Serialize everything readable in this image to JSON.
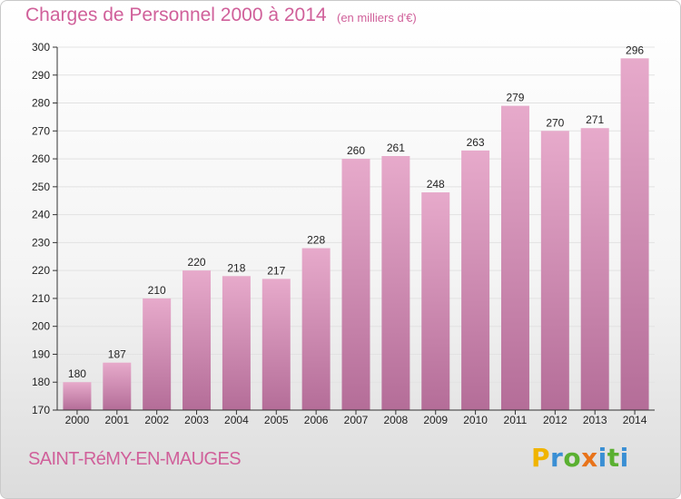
{
  "header": {
    "title": "Charges de Personnel 2000 à 2014",
    "unit": "(en milliers d'€)"
  },
  "footer": {
    "commune": "SAINT-RéMY-EN-MAUGES",
    "logo": "Proxiti"
  },
  "colors": {
    "accent": "#d0609a",
    "bar_top": "#e7aacb",
    "bar_bottom": "#b46d98",
    "grid": "#e2e2e2",
    "axis": "#333333"
  },
  "chart_data": {
    "type": "bar",
    "title": "Charges de Personnel 2000 à 2014",
    "subtitle": "(en milliers d'€)",
    "xlabel": "",
    "ylabel": "",
    "categories": [
      "2000",
      "2001",
      "2002",
      "2003",
      "2004",
      "2005",
      "2006",
      "2007",
      "2008",
      "2009",
      "2010",
      "2011",
      "2012",
      "2013",
      "2014"
    ],
    "values": [
      180,
      187,
      210,
      220,
      218,
      217,
      228,
      260,
      261,
      248,
      263,
      279,
      270,
      271,
      296
    ],
    "ylim": [
      170,
      300
    ],
    "yticks": [
      170,
      180,
      190,
      200,
      210,
      220,
      230,
      240,
      250,
      260,
      270,
      280,
      290,
      300
    ],
    "grid": true,
    "data_labels": true,
    "legend": "none"
  }
}
